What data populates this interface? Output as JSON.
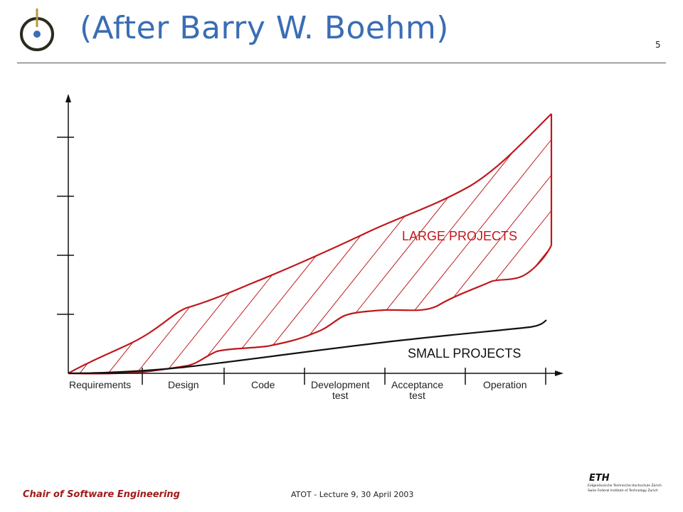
{
  "slide": {
    "title": "(After Barry W. Boehm)",
    "page_number": "5"
  },
  "diagram": {
    "phases": [
      {
        "label": "Requirements",
        "sub": ""
      },
      {
        "label": "Design",
        "sub": ""
      },
      {
        "label": "Code",
        "sub": ""
      },
      {
        "label": "Development",
        "sub": "test"
      },
      {
        "label": "Acceptance",
        "sub": "test"
      },
      {
        "label": "Operation",
        "sub": ""
      }
    ],
    "large_projects_label": "LARGE PROJECTS",
    "small_projects_label": "SMALL PROJECTS",
    "colors": {
      "large": "#c0181c",
      "small": "#111111",
      "title": "#3a6db5"
    }
  },
  "footer": {
    "chair": "Chair of Software Engineering",
    "lecture": "ATOT - Lecture 9, 30 April 2003",
    "eth_logo_text": "ETH",
    "eth_line1": "Eidgenössische Technische Hochschule Zürich",
    "eth_line2": "Swiss Federal Institute of Technology Zurich"
  }
}
